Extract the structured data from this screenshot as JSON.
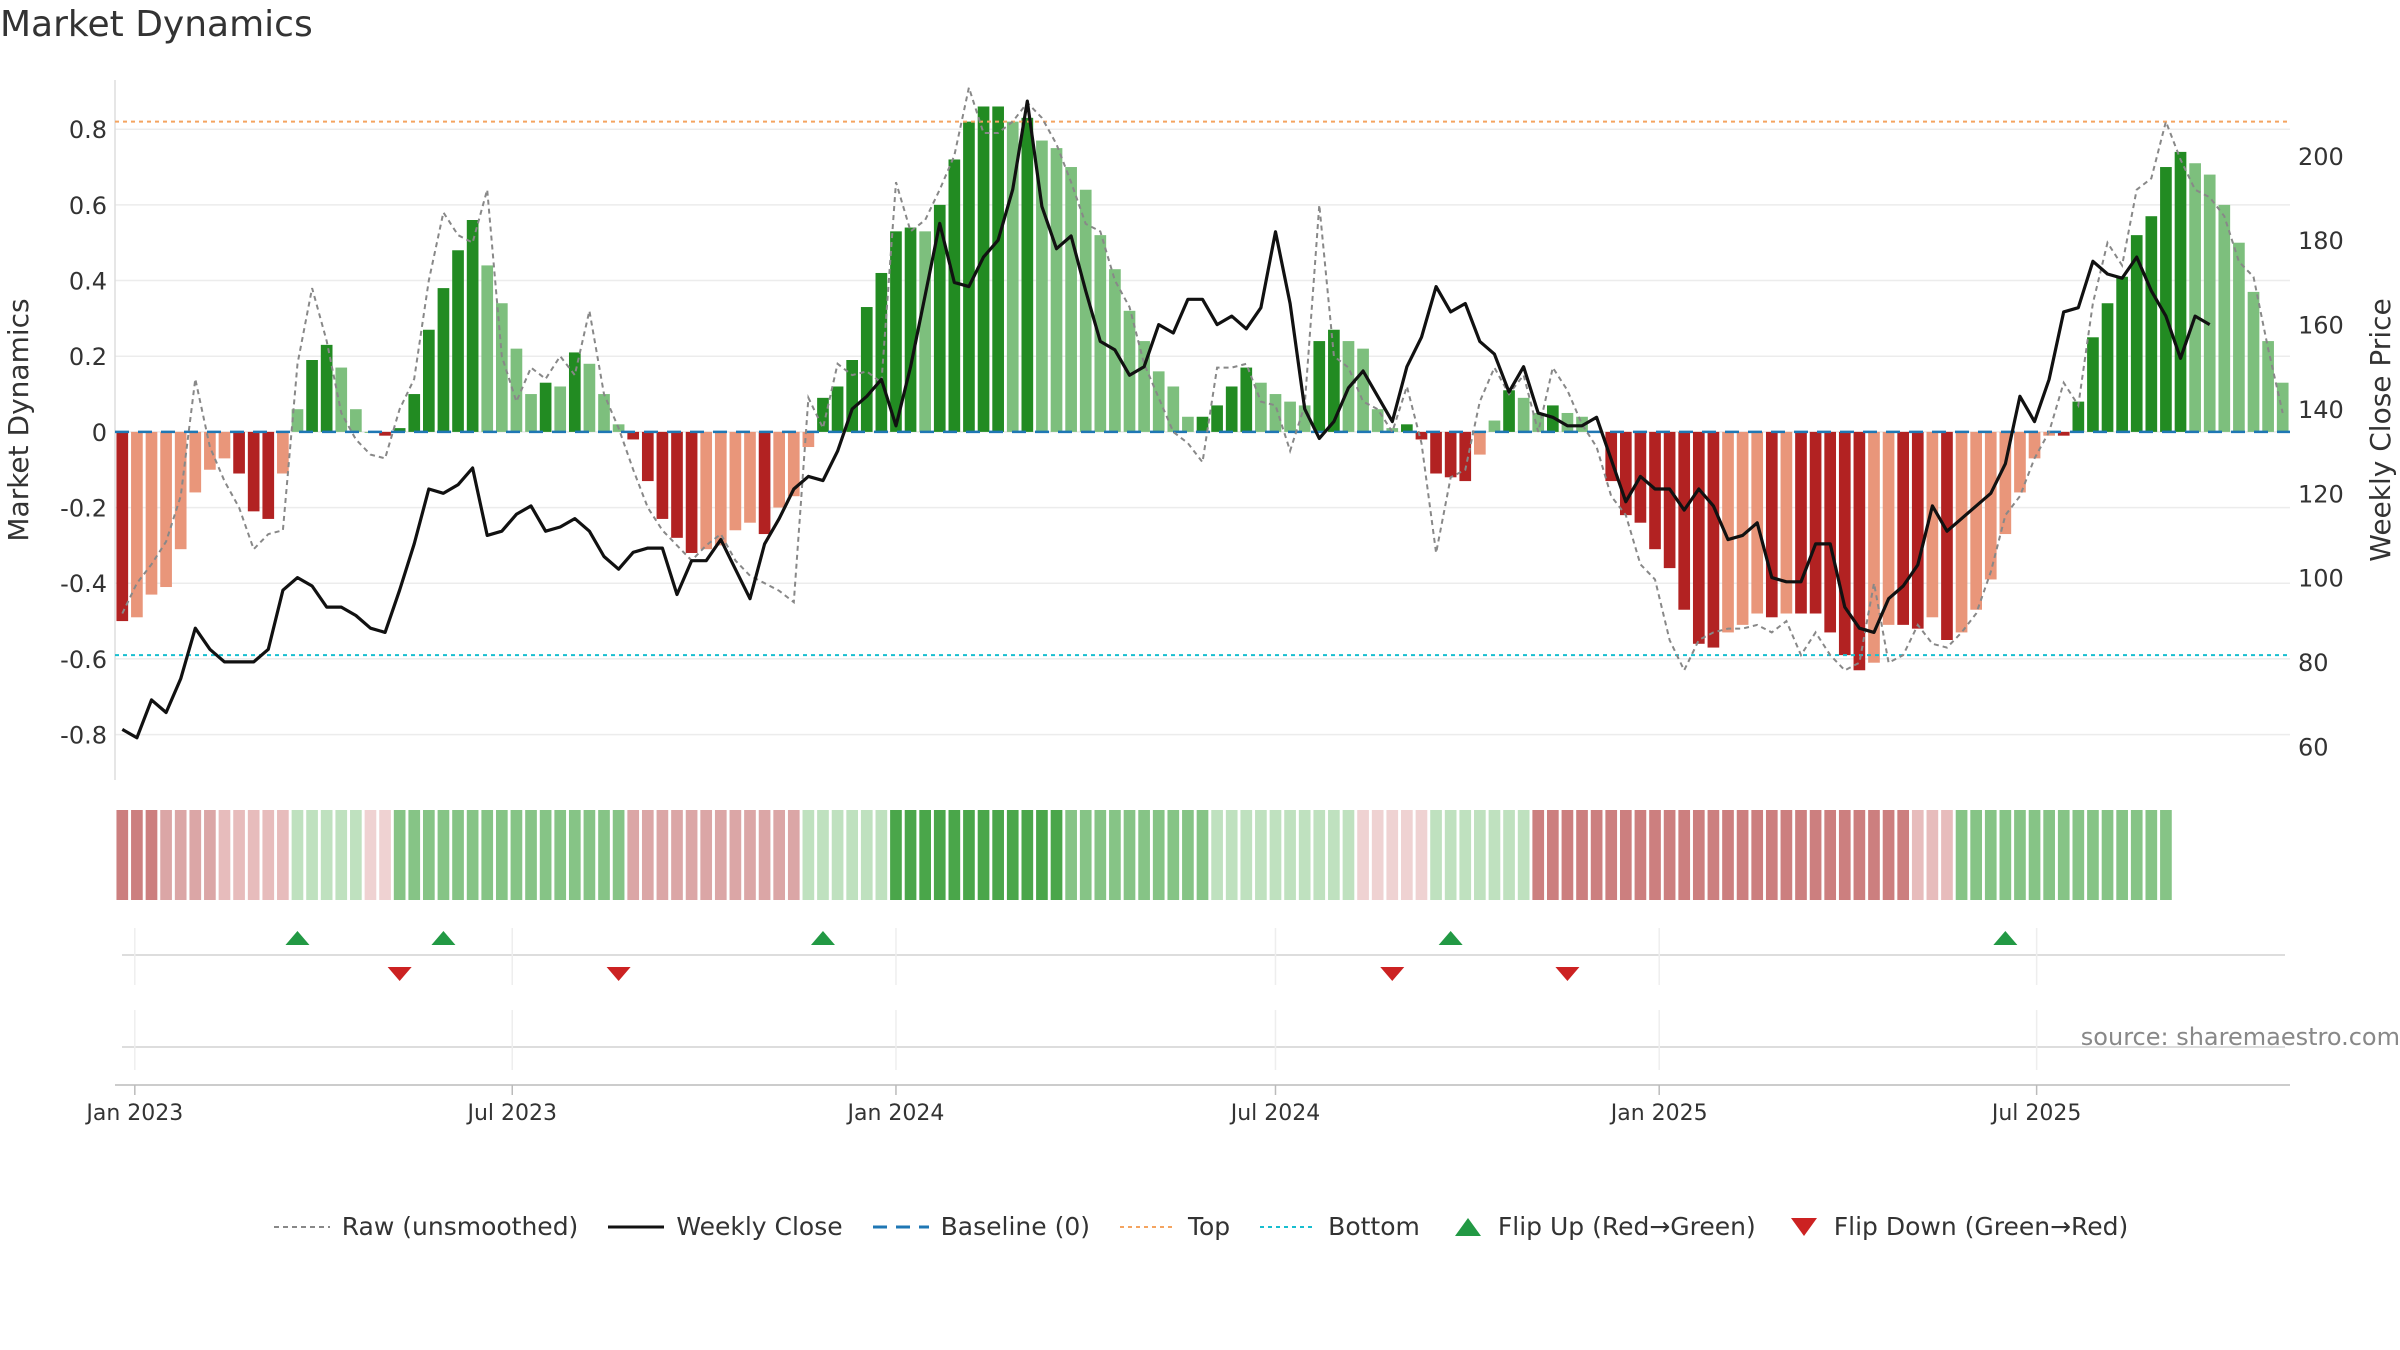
{
  "title": "Market Dynamics",
  "source": "source: sharemaestro.com",
  "chart_data": {
    "type": "bar",
    "x_start": "2022-12-26",
    "y_left": {
      "label": "Market Dynamics",
      "range": [
        -0.92,
        0.93
      ],
      "ticks": [
        "0.8",
        "0.6",
        "0.4",
        "0.2",
        "0",
        "-0.2",
        "-0.4",
        "-0.6",
        "-0.8"
      ],
      "tick_values": [
        0.8,
        0.6,
        0.4,
        0.2,
        0,
        -0.2,
        -0.4,
        -0.6,
        -0.8
      ]
    },
    "y_right": {
      "label": "Weekly Close Price",
      "range": [
        52,
        218
      ],
      "ticks": [
        "200",
        "180",
        "160",
        "140",
        "120",
        "100",
        "80",
        "60"
      ],
      "tick_values": [
        200,
        180,
        160,
        140,
        120,
        100,
        80,
        60
      ]
    },
    "x_ticks": [
      {
        "label": "Jan 2023",
        "date": "2023-01-01"
      },
      {
        "label": "Jul 2023",
        "date": "2023-07-01"
      },
      {
        "label": "Jan 2024",
        "date": "2024-01-01"
      },
      {
        "label": "Jul 2024",
        "date": "2024-07-01"
      },
      {
        "label": "Jan 2025",
        "date": "2025-01-01"
      },
      {
        "label": "Jul 2025",
        "date": "2025-07-01"
      }
    ],
    "top_line": 0.82,
    "bottom_line": -0.59,
    "baseline": 0,
    "grid": true,
    "legend_position": "bottom",
    "market_dynamics": [
      -0.5,
      -0.49,
      -0.43,
      -0.41,
      -0.31,
      -0.16,
      -0.1,
      -0.07,
      -0.11,
      -0.21,
      -0.23,
      -0.11,
      0.06,
      0.19,
      0.23,
      0.17,
      0.06,
      0.0,
      -0.01,
      0.01,
      0.1,
      0.27,
      0.38,
      0.48,
      0.56,
      0.44,
      0.34,
      0.22,
      0.1,
      0.13,
      0.12,
      0.21,
      0.18,
      0.1,
      0.02,
      -0.02,
      -0.13,
      -0.23,
      -0.28,
      -0.32,
      -0.31,
      -0.3,
      -0.26,
      -0.24,
      -0.27,
      -0.2,
      -0.17,
      -0.04,
      0.09,
      0.12,
      0.19,
      0.33,
      0.42,
      0.53,
      0.54,
      0.53,
      0.6,
      0.72,
      0.82,
      0.86,
      0.86,
      0.82,
      0.83,
      0.77,
      0.75,
      0.7,
      0.64,
      0.52,
      0.43,
      0.32,
      0.24,
      0.16,
      0.12,
      0.04,
      0.04,
      0.07,
      0.12,
      0.17,
      0.13,
      0.1,
      0.08,
      0.07,
      0.24,
      0.27,
      0.24,
      0.22,
      0.06,
      0.01,
      0.02,
      -0.02,
      -0.11,
      -0.12,
      -0.13,
      -0.06,
      0.03,
      0.11,
      0.09,
      0.05,
      0.07,
      0.05,
      0.04,
      0.0,
      -0.13,
      -0.22,
      -0.24,
      -0.31,
      -0.36,
      -0.47,
      -0.56,
      -0.57,
      -0.53,
      -0.51,
      -0.48,
      -0.49,
      -0.48,
      -0.48,
      -0.48,
      -0.53,
      -0.59,
      -0.63,
      -0.61,
      -0.51,
      -0.51,
      -0.52,
      -0.49,
      -0.55,
      -0.53,
      -0.47,
      -0.39,
      -0.27,
      -0.16,
      -0.07,
      -0.01,
      -0.01,
      0.08,
      0.25,
      0.34,
      0.41,
      0.52,
      0.57,
      0.7,
      0.74,
      0.71,
      0.68,
      0.6,
      0.5,
      0.37,
      0.24,
      0.13
    ],
    "raw_unsmoothed": [
      -0.48,
      -0.4,
      -0.35,
      -0.29,
      -0.17,
      0.14,
      -0.04,
      -0.13,
      -0.2,
      -0.31,
      -0.27,
      -0.26,
      0.18,
      0.38,
      0.24,
      0.05,
      -0.02,
      -0.06,
      -0.07,
      0.06,
      0.14,
      0.4,
      0.58,
      0.52,
      0.5,
      0.64,
      0.2,
      0.08,
      0.17,
      0.14,
      0.2,
      0.15,
      0.32,
      0.1,
      0.01,
      -0.1,
      -0.2,
      -0.26,
      -0.3,
      -0.34,
      -0.3,
      -0.27,
      -0.34,
      -0.38,
      -0.4,
      -0.42,
      -0.45,
      0.09,
      0.01,
      0.18,
      0.15,
      0.16,
      0.13,
      0.66,
      0.53,
      0.56,
      0.64,
      0.73,
      0.91,
      0.79,
      0.79,
      0.82,
      0.87,
      0.83,
      0.76,
      0.66,
      0.55,
      0.53,
      0.4,
      0.33,
      0.18,
      0.09,
      0.0,
      -0.03,
      -0.08,
      0.17,
      0.17,
      0.18,
      0.08,
      0.07,
      -0.05,
      0.07,
      0.6,
      0.2,
      0.17,
      0.08,
      0.06,
      0.0,
      0.12,
      -0.03,
      -0.32,
      -0.12,
      -0.1,
      0.08,
      0.17,
      0.1,
      0.15,
      0.0,
      0.17,
      0.11,
      0.02,
      -0.04,
      -0.17,
      -0.22,
      -0.35,
      -0.39,
      -0.55,
      -0.63,
      -0.55,
      -0.53,
      -0.52,
      -0.52,
      -0.51,
      -0.53,
      -0.5,
      -0.59,
      -0.53,
      -0.59,
      -0.63,
      -0.61,
      -0.4,
      -0.61,
      -0.59,
      -0.51,
      -0.56,
      -0.57,
      -0.53,
      -0.48,
      -0.37,
      -0.22,
      -0.17,
      -0.07,
      0.0,
      0.13,
      0.07,
      0.34,
      0.5,
      0.44,
      0.64,
      0.67,
      0.82,
      0.72,
      0.64,
      0.62,
      0.57,
      0.45,
      0.41,
      0.22,
      0.05
    ],
    "weekly_close": [
      64,
      62,
      71,
      68,
      76,
      88,
      83,
      80,
      80,
      80,
      83,
      97,
      100,
      98,
      93,
      93,
      91,
      88,
      87,
      97,
      108,
      121,
      120,
      122,
      126,
      110,
      111,
      115,
      117,
      111,
      112,
      114,
      111,
      105,
      102,
      106,
      107,
      107,
      96,
      104,
      104,
      109,
      102,
      95,
      108,
      114,
      121,
      124,
      123,
      130,
      140,
      143,
      147,
      136,
      150,
      167,
      184,
      170,
      169,
      176,
      180,
      192,
      213,
      188,
      178,
      181,
      168,
      156,
      154,
      148,
      150,
      160,
      158,
      166,
      166,
      160,
      162,
      159,
      164,
      182,
      165,
      140,
      133,
      137,
      145,
      149,
      143,
      137,
      150,
      157,
      169,
      163,
      165,
      156,
      153,
      144,
      150,
      139,
      138,
      136,
      136,
      138,
      128,
      118,
      124,
      121,
      121,
      116,
      121,
      117,
      109,
      110,
      113,
      100,
      99,
      99,
      108,
      108,
      93,
      88,
      87,
      95,
      98,
      103,
      117,
      111,
      114,
      117,
      120,
      127,
      143,
      137,
      147,
      163,
      164,
      175,
      172,
      171,
      176,
      168,
      162,
      152,
      162,
      160
    ],
    "regime_bands": [
      {
        "state": "red-strong",
        "count": 3
      },
      {
        "state": "red",
        "count": 4
      },
      {
        "state": "red-light",
        "count": 5
      },
      {
        "state": "green-light",
        "count": 5
      },
      {
        "state": "red-faint",
        "count": 2
      },
      {
        "state": "green",
        "count": 16
      },
      {
        "state": "red",
        "count": 12
      },
      {
        "state": "green-light",
        "count": 6
      },
      {
        "state": "green-strong",
        "count": 12
      },
      {
        "state": "green",
        "count": 10
      },
      {
        "state": "green-light",
        "count": 10
      },
      {
        "state": "red-faint",
        "count": 5
      },
      {
        "state": "green-light",
        "count": 7
      },
      {
        "state": "red-strong",
        "count": 26
      },
      {
        "state": "red-light",
        "count": 3
      },
      {
        "state": "green",
        "count": 15
      }
    ],
    "flip_up_dates": [
      "2023-03-20",
      "2023-05-29",
      "2023-11-27",
      "2024-09-23",
      "2025-06-16"
    ],
    "flip_down_dates": [
      "2023-05-08",
      "2023-08-21",
      "2024-08-26",
      "2024-11-18"
    ]
  },
  "colors": {
    "green_strong": "#228b22",
    "green_light": "#7dbf7d",
    "red_strong": "#b22222",
    "red_light": "#e9967a",
    "price_line": "#111111",
    "raw_line": "#888888",
    "baseline": "#1f77b4",
    "top_line": "#f4a460",
    "bottom_line": "#17becf",
    "flip_up": "#229944",
    "flip_down": "#cc2222"
  },
  "legend": [
    {
      "key": "raw",
      "label": "Raw (unsmoothed)"
    },
    {
      "key": "close",
      "label": "Weekly Close"
    },
    {
      "key": "baseline",
      "label": "Baseline (0)"
    },
    {
      "key": "top",
      "label": "Top"
    },
    {
      "key": "bottom",
      "label": "Bottom"
    },
    {
      "key": "flip-up",
      "label": "Flip Up (Red→Green)"
    },
    {
      "key": "flip-down",
      "label": "Flip Down (Green→Red)"
    }
  ]
}
